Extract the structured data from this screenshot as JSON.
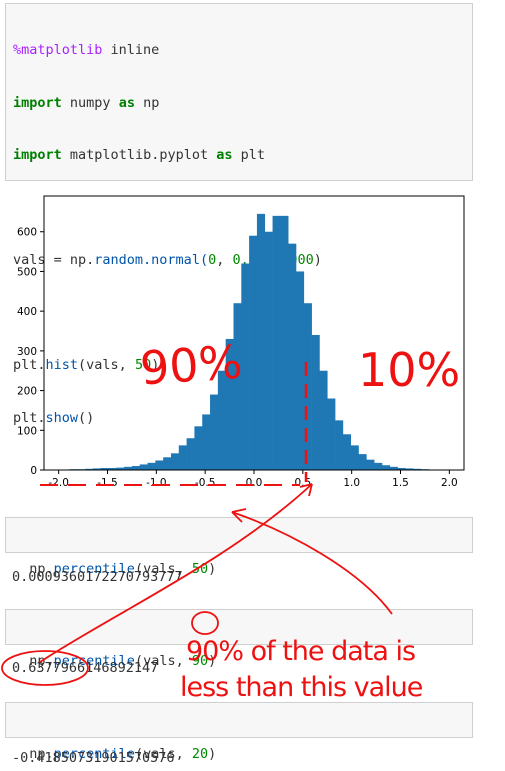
{
  "cell1": {
    "magic": "%matplotlib",
    "magic_arg": "inline",
    "l2_kw1": "import",
    "l2_mod": "numpy",
    "l2_kw2": "as",
    "l2_alias": "np",
    "l3_kw1": "import",
    "l3_mod": "matplotlib.pyplot",
    "l3_kw2": "as",
    "l3_alias": "plt",
    "l5_a": "vals = np.",
    "l5_b": "random.normal(",
    "l5_c": "0",
    "l5_d": ", ",
    "l5_e": "0.5",
    "l5_f": ", ",
    "l5_g": "10000",
    "l5_h": ")",
    "l7_a": "plt.",
    "l7_b": "hist",
    "l7_c": "(vals, ",
    "l7_d": "50",
    "l7_e": ")",
    "l8_a": "plt.",
    "l8_b": "show",
    "l8_c": "()"
  },
  "chart_data": {
    "type": "bar",
    "title": "",
    "xlabel": "",
    "ylabel": "",
    "xlim": [
      -2.15,
      2.15
    ],
    "ylim": [
      0,
      690
    ],
    "color": "#1f77b4",
    "x_ticks": [
      -2.0,
      -1.5,
      -1.0,
      -0.5,
      0.0,
      0.5,
      1.0,
      1.5,
      2.0
    ],
    "x_tick_labels": [
      "-2.0",
      "-1.5",
      "-1.0",
      "-0.5",
      "0.0",
      "0.5",
      "1.0",
      "1.5",
      "2.0"
    ],
    "y_ticks": [
      0,
      100,
      200,
      300,
      400,
      500,
      600
    ],
    "y_tick_labels": [
      "0",
      "100",
      "200",
      "300",
      "400",
      "500",
      "600"
    ],
    "bin_start": -2.05,
    "bin_width": 0.08,
    "values": [
      1,
      1,
      2,
      2,
      3,
      4,
      5,
      5,
      6,
      8,
      10,
      14,
      18,
      24,
      32,
      42,
      62,
      80,
      110,
      140,
      190,
      250,
      330,
      420,
      520,
      590,
      645,
      600,
      640,
      640,
      570,
      500,
      420,
      340,
      250,
      180,
      125,
      90,
      62,
      40,
      26,
      18,
      12,
      8,
      5,
      4,
      3,
      2,
      1,
      1
    ]
  },
  "cell2": {
    "fn": "np.",
    "fn2": "percentile",
    "a": "(vals, ",
    "num": "50",
    "b": ")"
  },
  "out2": "0.0009360172270793777",
  "cell3": {
    "fn": "np.",
    "fn2": "percentile",
    "a": "(vals, ",
    "num": "90",
    "b": ")"
  },
  "out3": "0.6377966146892147",
  "cell4": {
    "fn": "np.",
    "fn2": "percentile",
    "a": "(vals, ",
    "num": "20",
    "b": ")"
  },
  "out4": "-0.41850731901570576",
  "annotations": {
    "left_pct": "90%",
    "right_pct": "10%",
    "note_line1": "90% of the data is",
    "note_line2": "less than this value"
  },
  "colors": {
    "annotation": "#ee1111",
    "bars": "#1f77b4"
  }
}
